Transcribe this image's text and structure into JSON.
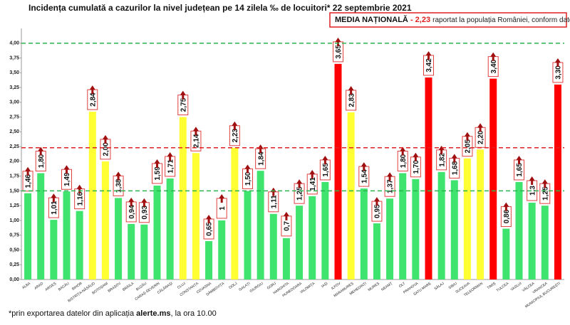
{
  "chart_data": {
    "type": "bar",
    "title": "Incidența cumulată a cazurilor la nivel județean pe 14 zilela ‰ de locuitori* 22 septembrie 2021",
    "annotation": [
      "MEDIA NAȚIONALĂ",
      "- 2,23",
      "raportat la populația României, conform datelor INS"
    ],
    "footnote": [
      "*prin exportarea datelor din aplicația",
      "alerte.ms",
      ", la ora 10.00"
    ],
    "categories": [
      "ALBA",
      "ARAD",
      "ARGEȘ",
      "BACĂU",
      "BIHOR",
      "BISTRIȚA-NĂSĂUD",
      "BOTOȘANI",
      "BRAȘOV",
      "BRĂILA",
      "BUZĂU",
      "CARAȘ-SEVERIN",
      "CĂLĂRAȘI",
      "CLUJ",
      "CONSTANȚA",
      "COVASNA",
      "DÂMBOVIȚA",
      "DOLJ",
      "GALAȚI",
      "GIURGIU",
      "GORJ",
      "HARGHITA",
      "HUNEDOARA",
      "IALOMIȚA",
      "IAȘI",
      "ILFOV",
      "MARAMUREȘ",
      "MEHEDINȚI",
      "MUREȘ",
      "NEAMȚ",
      "OLT",
      "PRAHOVA",
      "SATU MARE",
      "SĂLAJ",
      "SIBIU",
      "SUCEAVA",
      "TELEORMAN",
      "TIMIȘ",
      "TULCEA",
      "VASLUI",
      "VÂLCEA",
      "VRANCEA",
      "MUNICIPIUL BUCUREȘTI"
    ],
    "values": [
      1.46,
      1.8,
      1.01,
      1.49,
      1.16,
      2.84,
      2.0,
      1.38,
      0.94,
      0.93,
      1.59,
      1.71,
      2.75,
      2.14,
      0.65,
      1,
      2.23,
      1.5,
      1.84,
      1.11,
      0.7,
      1.25,
      1.41,
      1.65,
      3.65,
      2.83,
      1.54,
      0.95,
      1.37,
      1.8,
      1.7,
      3.42,
      1.82,
      1.68,
      2.05,
      2.2,
      3.4,
      0.86,
      1.65,
      1.3,
      1.25,
      3.3
    ],
    "value_labels": [
      "1,46",
      "1,80",
      "1,01",
      "1,49",
      "1,16",
      "2,84",
      "2,00",
      "1,38",
      "0,94",
      "0,93",
      "1,59",
      "1,71",
      "2,75",
      "2,14",
      "0,65",
      "1",
      "2,23",
      "1,50",
      "1,84",
      "1,11",
      "0,7",
      "1,25",
      "1,41",
      "1,65",
      "3,65",
      "2,83",
      "1,54",
      "0,95",
      "1,37",
      "1,80",
      "1,70",
      "3,42",
      "1,82",
      "1,68",
      "2,05",
      "2,20",
      "3,40",
      "0,86",
      "1,65",
      "1,3",
      "1,25",
      "3,30"
    ],
    "colors": [
      "#3ee46e",
      "#3ee46e",
      "#3ee46e",
      "#3ee46e",
      "#3ee46e",
      "#ffff33",
      "#ffff33",
      "#3ee46e",
      "#3ee46e",
      "#3ee46e",
      "#3ee46e",
      "#3ee46e",
      "#ffff33",
      "#ffff33",
      "#3ee46e",
      "#3ee46e",
      "#ffff33",
      "#3ee46e",
      "#3ee46e",
      "#3ee46e",
      "#3ee46e",
      "#3ee46e",
      "#3ee46e",
      "#3ee46e",
      "#ff0000",
      "#ffff33",
      "#3ee46e",
      "#3ee46e",
      "#3ee46e",
      "#3ee46e",
      "#3ee46e",
      "#ff0000",
      "#3ee46e",
      "#3ee46e",
      "#ffff33",
      "#ffff33",
      "#ff0000",
      "#3ee46e",
      "#3ee46e",
      "#3ee46e",
      "#3ee46e",
      "#ff0000"
    ],
    "ylim": [
      0,
      4.25
    ],
    "yticks": [
      {
        "value": 0,
        "label": "0,00"
      },
      {
        "value": 0.25,
        "label": "0,25"
      },
      {
        "value": 0.5,
        "label": "0,50"
      },
      {
        "value": 0.75,
        "label": "0,75"
      },
      {
        "value": 1,
        "label": "1,00"
      },
      {
        "value": 1.25,
        "label": "1,25"
      },
      {
        "value": 1.5,
        "label": "1,50"
      },
      {
        "value": 1.75,
        "label": "1,75"
      },
      {
        "value": 2,
        "label": "2,00"
      },
      {
        "value": 2.25,
        "label": "2,25"
      },
      {
        "value": 2.5,
        "label": "2,50"
      },
      {
        "value": 2.75,
        "label": "2,75"
      },
      {
        "value": 3,
        "label": "3,00"
      },
      {
        "value": 3.25,
        "label": "3,25"
      },
      {
        "value": 3.5,
        "label": "3,50"
      },
      {
        "value": 3.75,
        "label": "3,75"
      },
      {
        "value": 4,
        "label": "4,00"
      }
    ],
    "reference_lines": [
      {
        "value": 1.5,
        "color": "#2bb34f"
      },
      {
        "value": 2.23,
        "color": "#e02020"
      },
      {
        "value": 4,
        "color": "#2bb34f"
      }
    ]
  }
}
